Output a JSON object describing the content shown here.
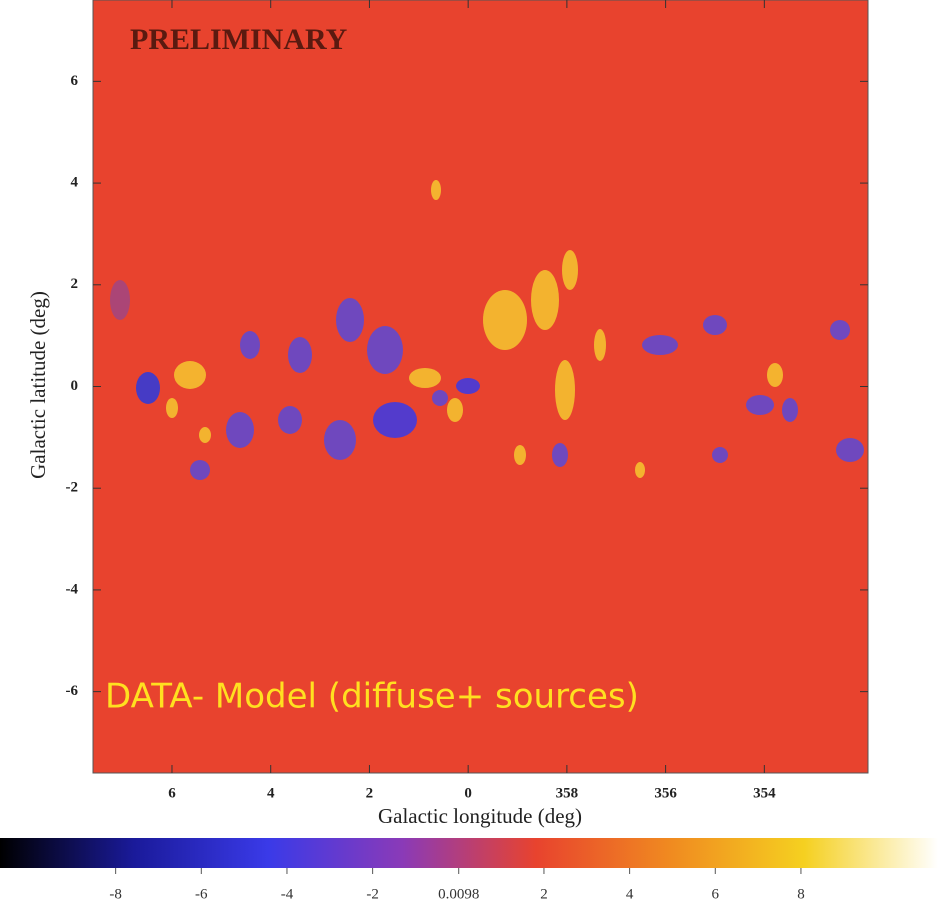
{
  "chart_data": {
    "type": "image",
    "title": "PRELIMINARY",
    "annotation": "DATA- Model (diffuse+ sources)",
    "x_label": "Galactic longitude (deg)",
    "y_label": "Galactic latitude (deg)",
    "xlim": [
      7.6,
      -8.1
    ],
    "xticks": [
      6,
      4,
      2,
      0,
      {
        "value": -2,
        "label": "358"
      },
      {
        "value": -4,
        "label": "356"
      },
      {
        "value": -6,
        "label": "354"
      }
    ],
    "ylim": [
      -7.6,
      7.6
    ],
    "yticks": [
      6,
      4,
      2,
      0,
      -2,
      -4,
      -6
    ],
    "color": "#e8432e",
    "colorbar": {
      "lim": [
        -10.7,
        11.2
      ],
      "ticks": [
        -8,
        -6,
        -4,
        -2,
        0.0098,
        2,
        4,
        6,
        8
      ],
      "colors": [
        "#000000",
        "#1a1a9a",
        "#3a3ae8",
        "#8a3ab8",
        "#e8432e",
        "#f08a20",
        "#f5d020",
        "#ffffff"
      ]
    }
  }
}
